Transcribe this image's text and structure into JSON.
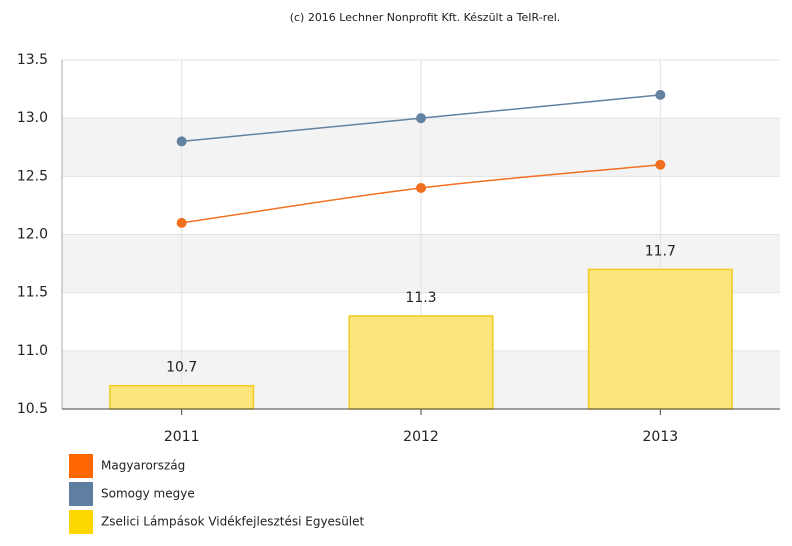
{
  "chart_data": {
    "type": "combo",
    "title": "(c) 2016 Lechner Nonprofit Kft. Készült a TeIR-rel.",
    "categories": [
      "2011",
      "2012",
      "2013"
    ],
    "series": [
      {
        "name": "Magyarország",
        "type": "line",
        "color": "#f07020",
        "values": [
          12.1,
          12.4,
          12.6
        ]
      },
      {
        "name": "Somogy megye",
        "type": "line",
        "color": "#6282a0",
        "values": [
          12.8,
          13.0,
          13.2
        ]
      },
      {
        "name": "Zselici Lámpások Vidékfejlesztési Egyesület",
        "type": "bar",
        "color": "#fce57b",
        "values": [
          10.7,
          11.3,
          11.7
        ]
      }
    ],
    "ylim": [
      10.5,
      13.5
    ],
    "yticks": [
      10.5,
      {
        "value": 11,
        "label": "11.0"
      },
      11.5,
      {
        "value": 12,
        "label": "12.0"
      },
      12.5,
      {
        "value": 13,
        "label": "13.0"
      },
      13.5
    ],
    "grid": true
  }
}
